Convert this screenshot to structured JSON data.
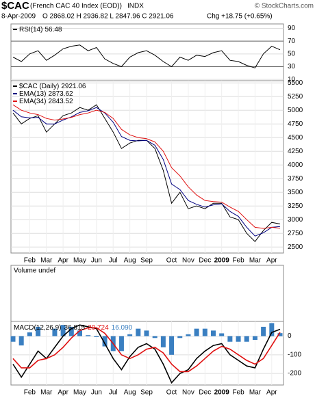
{
  "header": {
    "symbol": "$CAC",
    "description": "(French CAC 40 Index (EOD))",
    "exchange": "INDX",
    "credit": "© StockCharts.com",
    "date": "8-Apr-2009",
    "quote": "O 2868.02 H 2936.82 L 2847.96 C 2921.06",
    "change": "Chg +18.75 (+0.65%)"
  },
  "chart_data": [
    {
      "type": "line",
      "title": "RSI(14)",
      "ylim": [
        8,
        97
      ],
      "yticks": [
        10,
        30,
        50,
        70,
        90
      ],
      "reference_lines": [
        70,
        30
      ],
      "grid": true,
      "series": [
        {
          "name": "RSI(14)",
          "color": "#000000",
          "values": [
            45,
            38,
            50,
            55,
            40,
            48,
            58,
            62,
            64,
            55,
            60,
            42,
            35,
            30,
            45,
            52,
            55,
            48,
            38,
            30,
            45,
            40,
            48,
            46,
            52,
            55,
            40,
            38,
            32,
            28,
            50,
            62,
            56.48
          ]
        }
      ]
    },
    {
      "type": "line",
      "ylim": [
        2390,
        5540
      ],
      "yticks": [
        2500,
        2750,
        3000,
        3250,
        3500,
        3750,
        4000,
        4250,
        4500,
        4750,
        5000,
        5250,
        5500
      ],
      "grid": true,
      "categories": [
        null,
        null,
        "Feb",
        null,
        "Mar",
        null,
        "Apr",
        null,
        "May",
        null,
        "Jun",
        null,
        "Jul",
        null,
        "Aug",
        null,
        "Sep",
        null,
        null,
        "Oct",
        null,
        "Nov",
        null,
        "Dec",
        null,
        "2009",
        null,
        "Feb",
        null,
        "Mar",
        null,
        "Apr",
        null
      ],
      "series": [
        {
          "name": "$CAC (Daily)",
          "color": "#000000",
          "values": [
            4950,
            4750,
            4850,
            4900,
            4600,
            4750,
            4900,
            4950,
            5050,
            5000,
            5100,
            4850,
            4600,
            4300,
            4400,
            4450,
            4450,
            4300,
            3900,
            3300,
            3500,
            3200,
            3250,
            3200,
            3300,
            3300,
            3050,
            3000,
            2750,
            2600,
            2800,
            2950,
            2921.06
          ]
        },
        {
          "name": "EMA(13)",
          "color": "#000080",
          "values": [
            5000,
            4880,
            4860,
            4870,
            4750,
            4750,
            4820,
            4880,
            4960,
            4990,
            5050,
            4950,
            4780,
            4520,
            4450,
            4440,
            4450,
            4360,
            4100,
            3650,
            3550,
            3350,
            3280,
            3230,
            3270,
            3290,
            3150,
            3060,
            2860,
            2700,
            2760,
            2860,
            2873.62
          ]
        },
        {
          "name": "EMA(34)",
          "color": "#e01010",
          "values": [
            5100,
            5000,
            4950,
            4920,
            4850,
            4820,
            4840,
            4870,
            4920,
            4950,
            5000,
            4960,
            4850,
            4650,
            4550,
            4500,
            4480,
            4420,
            4250,
            3950,
            3800,
            3600,
            3450,
            3350,
            3330,
            3320,
            3230,
            3150,
            3000,
            2860,
            2840,
            2860,
            2843.52
          ]
        }
      ]
    },
    {
      "type": "volume",
      "title": "Volume undef"
    },
    {
      "type": "macd",
      "title": "MACD(12,26,9)",
      "ylim": [
        -262,
        79
      ],
      "yticks": [
        0,
        -100,
        -200
      ],
      "grid": true,
      "categories": [
        null,
        null,
        "Feb",
        null,
        "Mar",
        null,
        "Apr",
        null,
        "May",
        null,
        "Jun",
        null,
        "Jul",
        null,
        "Aug",
        null,
        "Sep",
        null,
        null,
        "Oct",
        null,
        "Nov",
        null,
        "Dec",
        null,
        "2009",
        null,
        "Feb",
        null,
        "Mar",
        null,
        "Apr",
        null
      ],
      "series": [
        {
          "name": "MACD",
          "color": "#000000",
          "last_label": "36.815",
          "values": [
            -150,
            -220,
            -150,
            -80,
            -120,
            -60,
            0,
            40,
            60,
            50,
            40,
            -40,
            -120,
            -180,
            -110,
            -60,
            -40,
            -70,
            -150,
            -250,
            -200,
            -180,
            -120,
            -80,
            -50,
            -40,
            -100,
            -130,
            -160,
            -170,
            -70,
            20,
            36.815
          ]
        },
        {
          "name": "Signal",
          "color": "#e01010",
          "last_label": "20.724",
          "values": [
            -120,
            -170,
            -170,
            -130,
            -120,
            -100,
            -60,
            -10,
            30,
            45,
            45,
            15,
            -40,
            -100,
            -120,
            -100,
            -70,
            -60,
            -90,
            -150,
            -190,
            -190,
            -160,
            -120,
            -80,
            -55,
            -70,
            -100,
            -130,
            -150,
            -120,
            -50,
            20.724
          ]
        },
        {
          "name": "Histogram",
          "color": "#3a7fc1",
          "style": "bar",
          "last_label": "16.090",
          "values": [
            -30,
            -50,
            20,
            50,
            0,
            40,
            60,
            50,
            30,
            5,
            -5,
            -55,
            -80,
            -80,
            10,
            40,
            30,
            -10,
            -60,
            -100,
            -10,
            10,
            40,
            40,
            30,
            15,
            -30,
            -30,
            -30,
            -20,
            50,
            70,
            16.09
          ]
        }
      ]
    }
  ]
}
